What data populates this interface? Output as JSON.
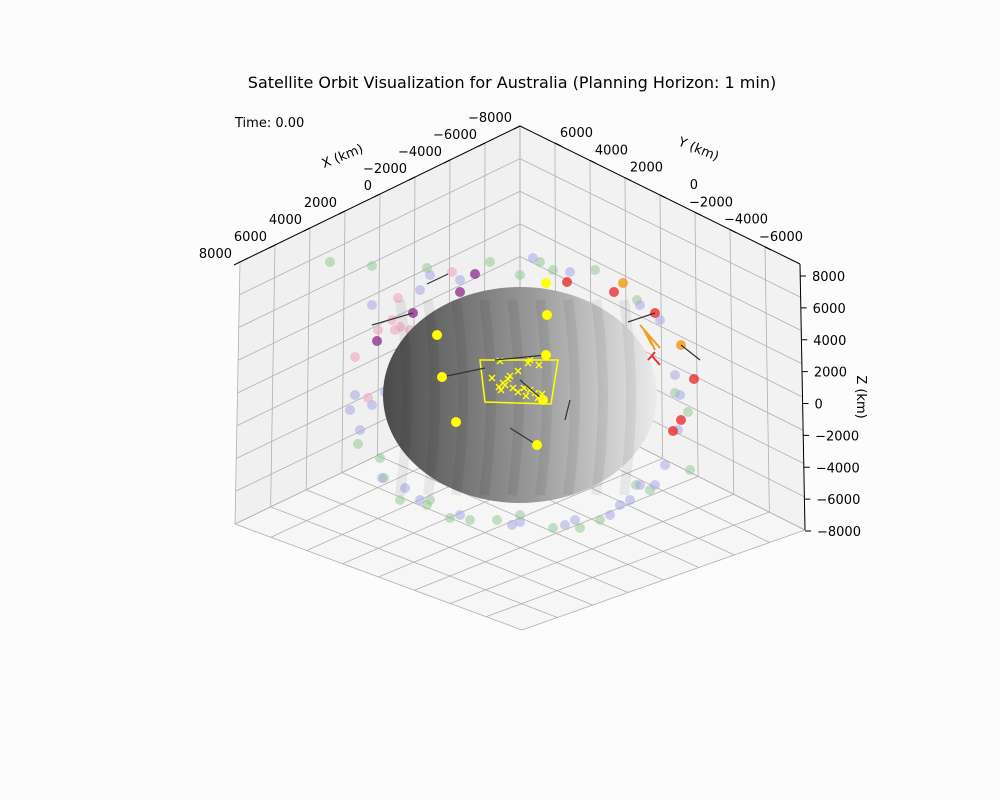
{
  "title": "Satellite Orbit Visualization for Australia (Planning Horizon: 1 min)",
  "time_label": "Time: 0.00",
  "chart_data": {
    "type": "scatter",
    "projection": "3d",
    "title": "Satellite Orbit Visualization for Australia (Planning Horizon: 1 min)",
    "xlabel": "X (km)",
    "ylabel": "Y (km)",
    "zlabel": "Z (km)",
    "xlim": [
      -8000,
      8000
    ],
    "ylim": [
      -8000,
      8000
    ],
    "zlim": [
      -8000,
      8000
    ],
    "x_ticks": [
      "−8000",
      "−6000",
      "−4000",
      "−2000",
      "0",
      "2000",
      "4000",
      "6000",
      "8000"
    ],
    "y_ticks": [
      "6000",
      "4000",
      "2000",
      "0",
      "−2000",
      "−4000",
      "−6000"
    ],
    "z_ticks": [
      "8000",
      "6000",
      "4000",
      "2000",
      "0",
      "−2000",
      "−4000",
      "−6000",
      "−8000"
    ],
    "grid": true,
    "legend": "none",
    "colors": {
      "earth_light": "#e8e8e8",
      "earth_dark": "#4a4a4a",
      "region_outline": "#ffff00",
      "ground_targets": "#ffff00",
      "active_satellites": "#ffff00",
      "green_satellites": "#98c898",
      "blue_satellites": "#a8a8e8",
      "pink_satellites": "#f0a8c0",
      "purple_satellites": "#8a2a8a",
      "red_satellites": "#e83030",
      "orange_satellites": "#f0a020"
    }
  }
}
